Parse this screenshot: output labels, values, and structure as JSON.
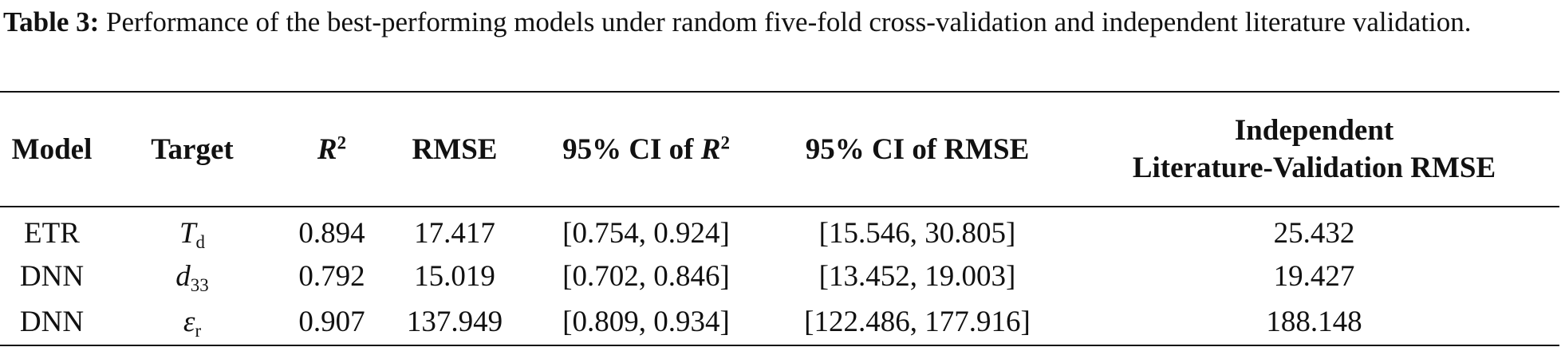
{
  "caption": {
    "label": "Table 3:",
    "text": "Performance of the best-performing models under random five-fold cross-validation and independent literature validation."
  },
  "table": {
    "headers": [
      {
        "text": "Model"
      },
      {
        "text": "Target"
      },
      {
        "base": "R",
        "sup": "2"
      },
      {
        "text": "RMSE"
      },
      {
        "text": "95% CI of",
        "base": "R",
        "sup": "2"
      },
      {
        "text": "95% CI of RMSE"
      },
      {
        "lines": [
          "Independent",
          "Literature-Validation RMSE"
        ]
      }
    ],
    "rows": [
      [
        {
          "text": "ETR"
        },
        {
          "base": "T",
          "sub": "d"
        },
        {
          "text": "0.894"
        },
        {
          "text": "17.417"
        },
        {
          "text": "[0.754, 0.924]"
        },
        {
          "text": "[15.546, 30.805]"
        },
        {
          "text": "25.432"
        }
      ],
      [
        {
          "text": "DNN"
        },
        {
          "base": "d",
          "sub": "33"
        },
        {
          "text": "0.792"
        },
        {
          "text": "15.019"
        },
        {
          "text": "[0.702, 0.846]"
        },
        {
          "text": "[13.452, 19.003]"
        },
        {
          "text": "19.427"
        }
      ],
      [
        {
          "text": "DNN"
        },
        {
          "base": "ε",
          "sub": "r"
        },
        {
          "text": "0.907"
        },
        {
          "text": "137.949"
        },
        {
          "text": "[0.809, 0.934]"
        },
        {
          "text": "[122.486, 177.916]"
        },
        {
          "text": "188.148"
        }
      ]
    ]
  }
}
